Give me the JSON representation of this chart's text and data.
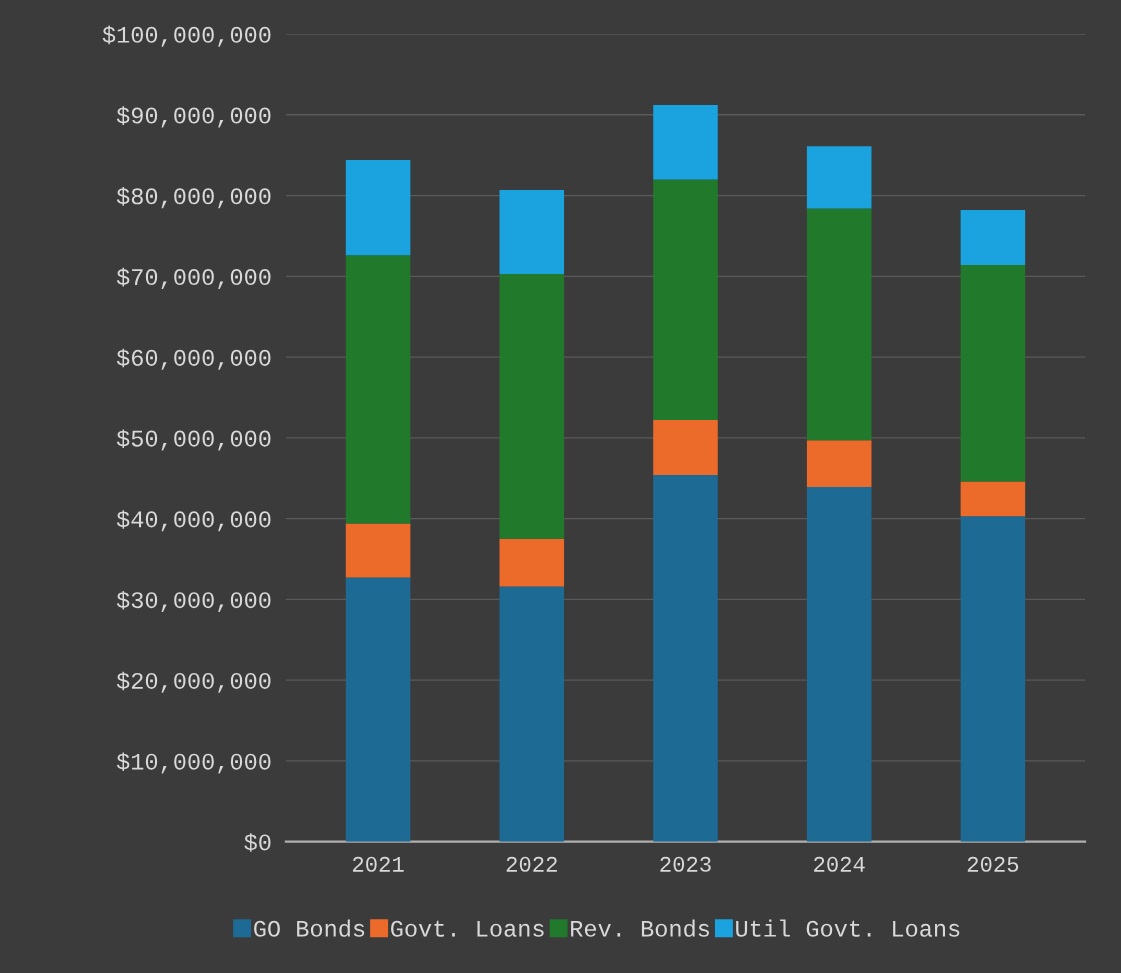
{
  "chart_data": {
    "type": "bar",
    "stacked": true,
    "categories": [
      "2021",
      "2022",
      "2023",
      "2024",
      "2025"
    ],
    "series": [
      {
        "name": "GO Bonds",
        "color": "#1d6a94",
        "values": [
          32700000,
          31600000,
          45400000,
          43900000,
          40300000
        ]
      },
      {
        "name": "Govt. Loans",
        "color": "#ec6a2a",
        "values": [
          6700000,
          5900000,
          6800000,
          5800000,
          4300000
        ]
      },
      {
        "name": "Rev. Bonds",
        "color": "#217a2c",
        "values": [
          33200000,
          32800000,
          29800000,
          28700000,
          26800000
        ]
      },
      {
        "name": "Util Govt. Loans",
        "color": "#1aa3df",
        "values": [
          11800000,
          10400000,
          9200000,
          7700000,
          6800000
        ]
      }
    ],
    "ylim": [
      0,
      100000000
    ],
    "yticks": [
      {
        "value": 0,
        "label": "$0"
      },
      {
        "value": 10000000,
        "label": "$10,000,000"
      },
      {
        "value": 20000000,
        "label": "$20,000,000"
      },
      {
        "value": 30000000,
        "label": "$30,000,000"
      },
      {
        "value": 40000000,
        "label": "$40,000,000"
      },
      {
        "value": 50000000,
        "label": "$50,000,000"
      },
      {
        "value": 60000000,
        "label": "$60,000,000"
      },
      {
        "value": 70000000,
        "label": "$70,000,000"
      },
      {
        "value": 80000000,
        "label": "$80,000,000"
      },
      {
        "value": 90000000,
        "label": "$90,000,000"
      },
      {
        "value": 100000000,
        "label": "$100,000,000"
      }
    ],
    "grid": "y",
    "legend": "bottom"
  }
}
